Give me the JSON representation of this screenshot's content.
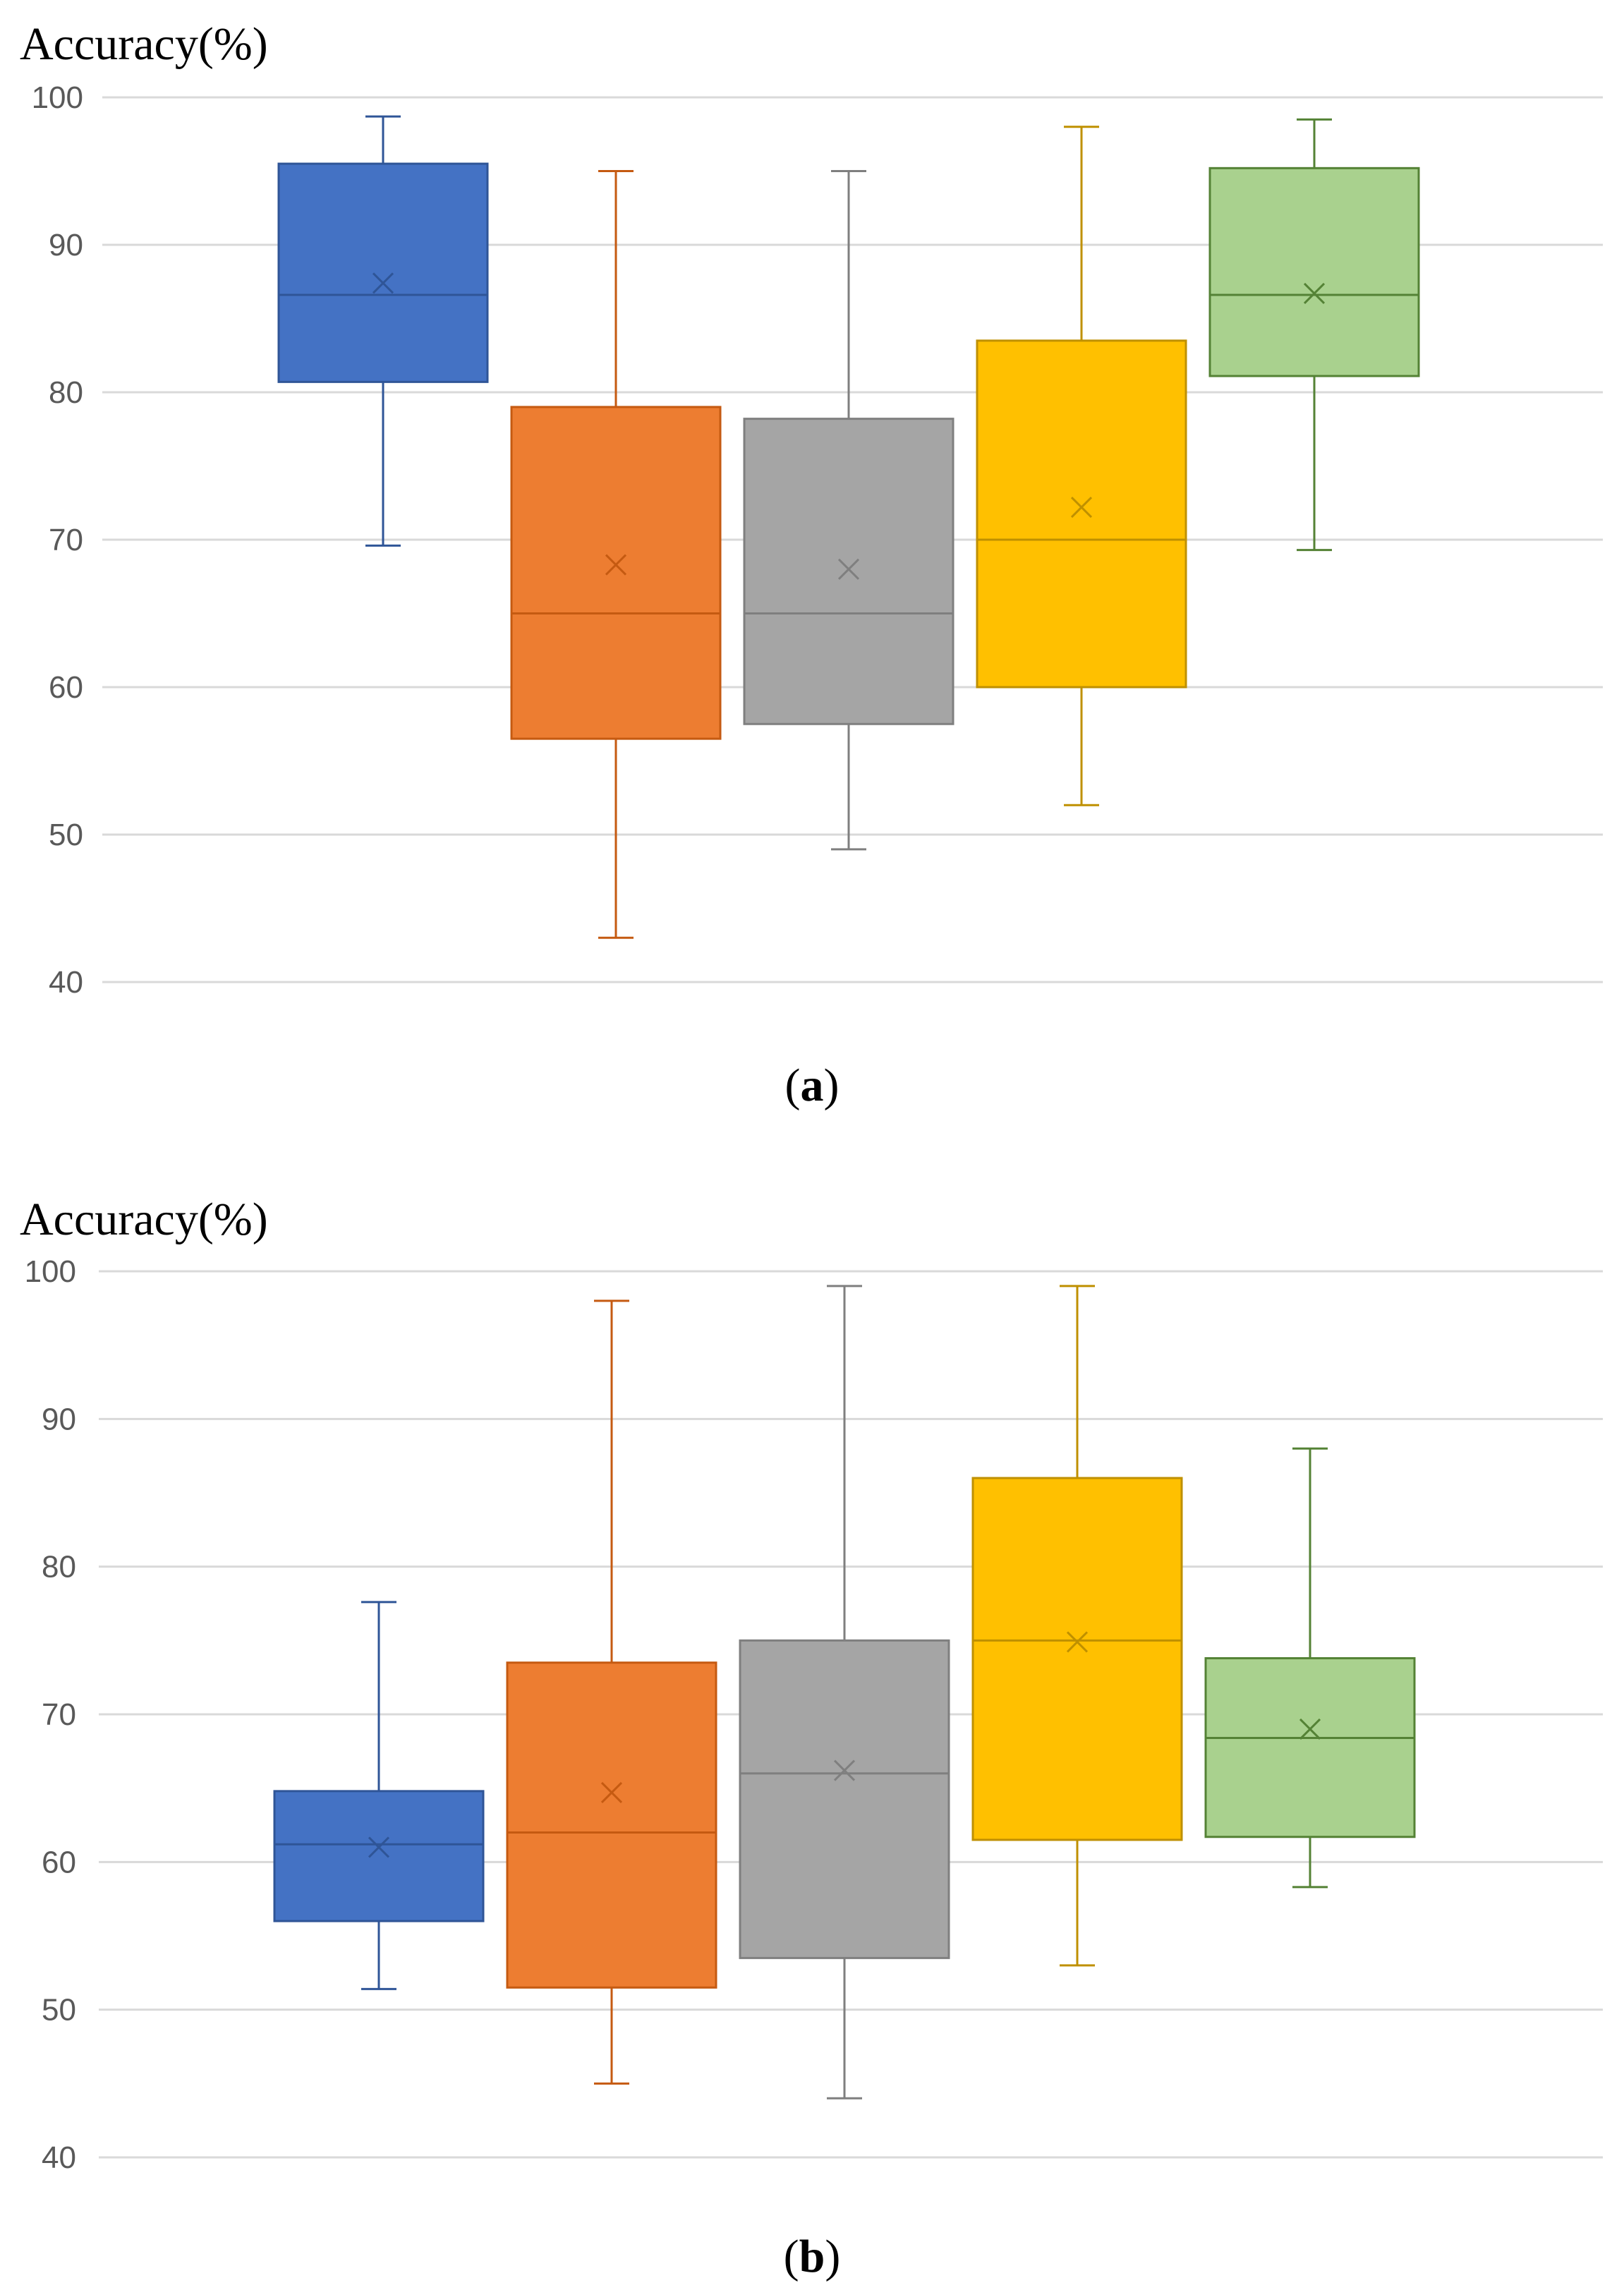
{
  "chart_data": [
    {
      "type": "box",
      "panel_label": "a",
      "ylabel": "Accuracy(%)",
      "ylim": [
        40,
        100
      ],
      "yticks": [
        40,
        50,
        60,
        70,
        80,
        90,
        100
      ],
      "grid": true,
      "series": [
        {
          "color": "#4472C4",
          "min": 69.6,
          "q1": 80.7,
          "median": 86.6,
          "q3": 95.5,
          "max": 98.7,
          "mean": 87.4
        },
        {
          "color": "#ED7D31",
          "min": 43.0,
          "q1": 56.5,
          "median": 65.0,
          "q3": 79.0,
          "max": 95.0,
          "mean": 68.3
        },
        {
          "color": "#A5A5A5",
          "min": 49.0,
          "q1": 57.5,
          "median": 65.0,
          "q3": 78.2,
          "max": 95.0,
          "mean": 68.0
        },
        {
          "color": "#FFC000",
          "min": 52.0,
          "q1": 60.0,
          "median": 70.0,
          "q3": 83.5,
          "max": 98.0,
          "mean": 72.2
        },
        {
          "color": "#A9D18E",
          "min": 69.3,
          "q1": 81.1,
          "median": 86.6,
          "q3": 95.2,
          "max": 98.5,
          "mean": 86.7
        }
      ]
    },
    {
      "type": "box",
      "panel_label": "b",
      "ylabel": "Accuracy(%)",
      "ylim": [
        40,
        100
      ],
      "yticks": [
        40,
        50,
        60,
        70,
        80,
        90,
        100
      ],
      "grid": true,
      "series": [
        {
          "color": "#4472C4",
          "min": 51.4,
          "q1": 56.0,
          "median": 61.2,
          "q3": 64.8,
          "max": 77.6,
          "mean": 61.0
        },
        {
          "color": "#ED7D31",
          "min": 45.0,
          "q1": 51.5,
          "median": 62.0,
          "q3": 73.5,
          "max": 98.0,
          "mean": 64.7
        },
        {
          "color": "#A5A5A5",
          "min": 44.0,
          "q1": 53.5,
          "median": 66.0,
          "q3": 75.0,
          "max": 99.0,
          "mean": 66.2
        },
        {
          "color": "#FFC000",
          "min": 53.0,
          "q1": 61.5,
          "median": 75.0,
          "q3": 86.0,
          "max": 99.0,
          "mean": 74.9
        },
        {
          "color": "#A9D18E",
          "min": 58.3,
          "q1": 61.7,
          "median": 68.4,
          "q3": 73.8,
          "max": 88.0,
          "mean": 69.0
        }
      ]
    }
  ]
}
